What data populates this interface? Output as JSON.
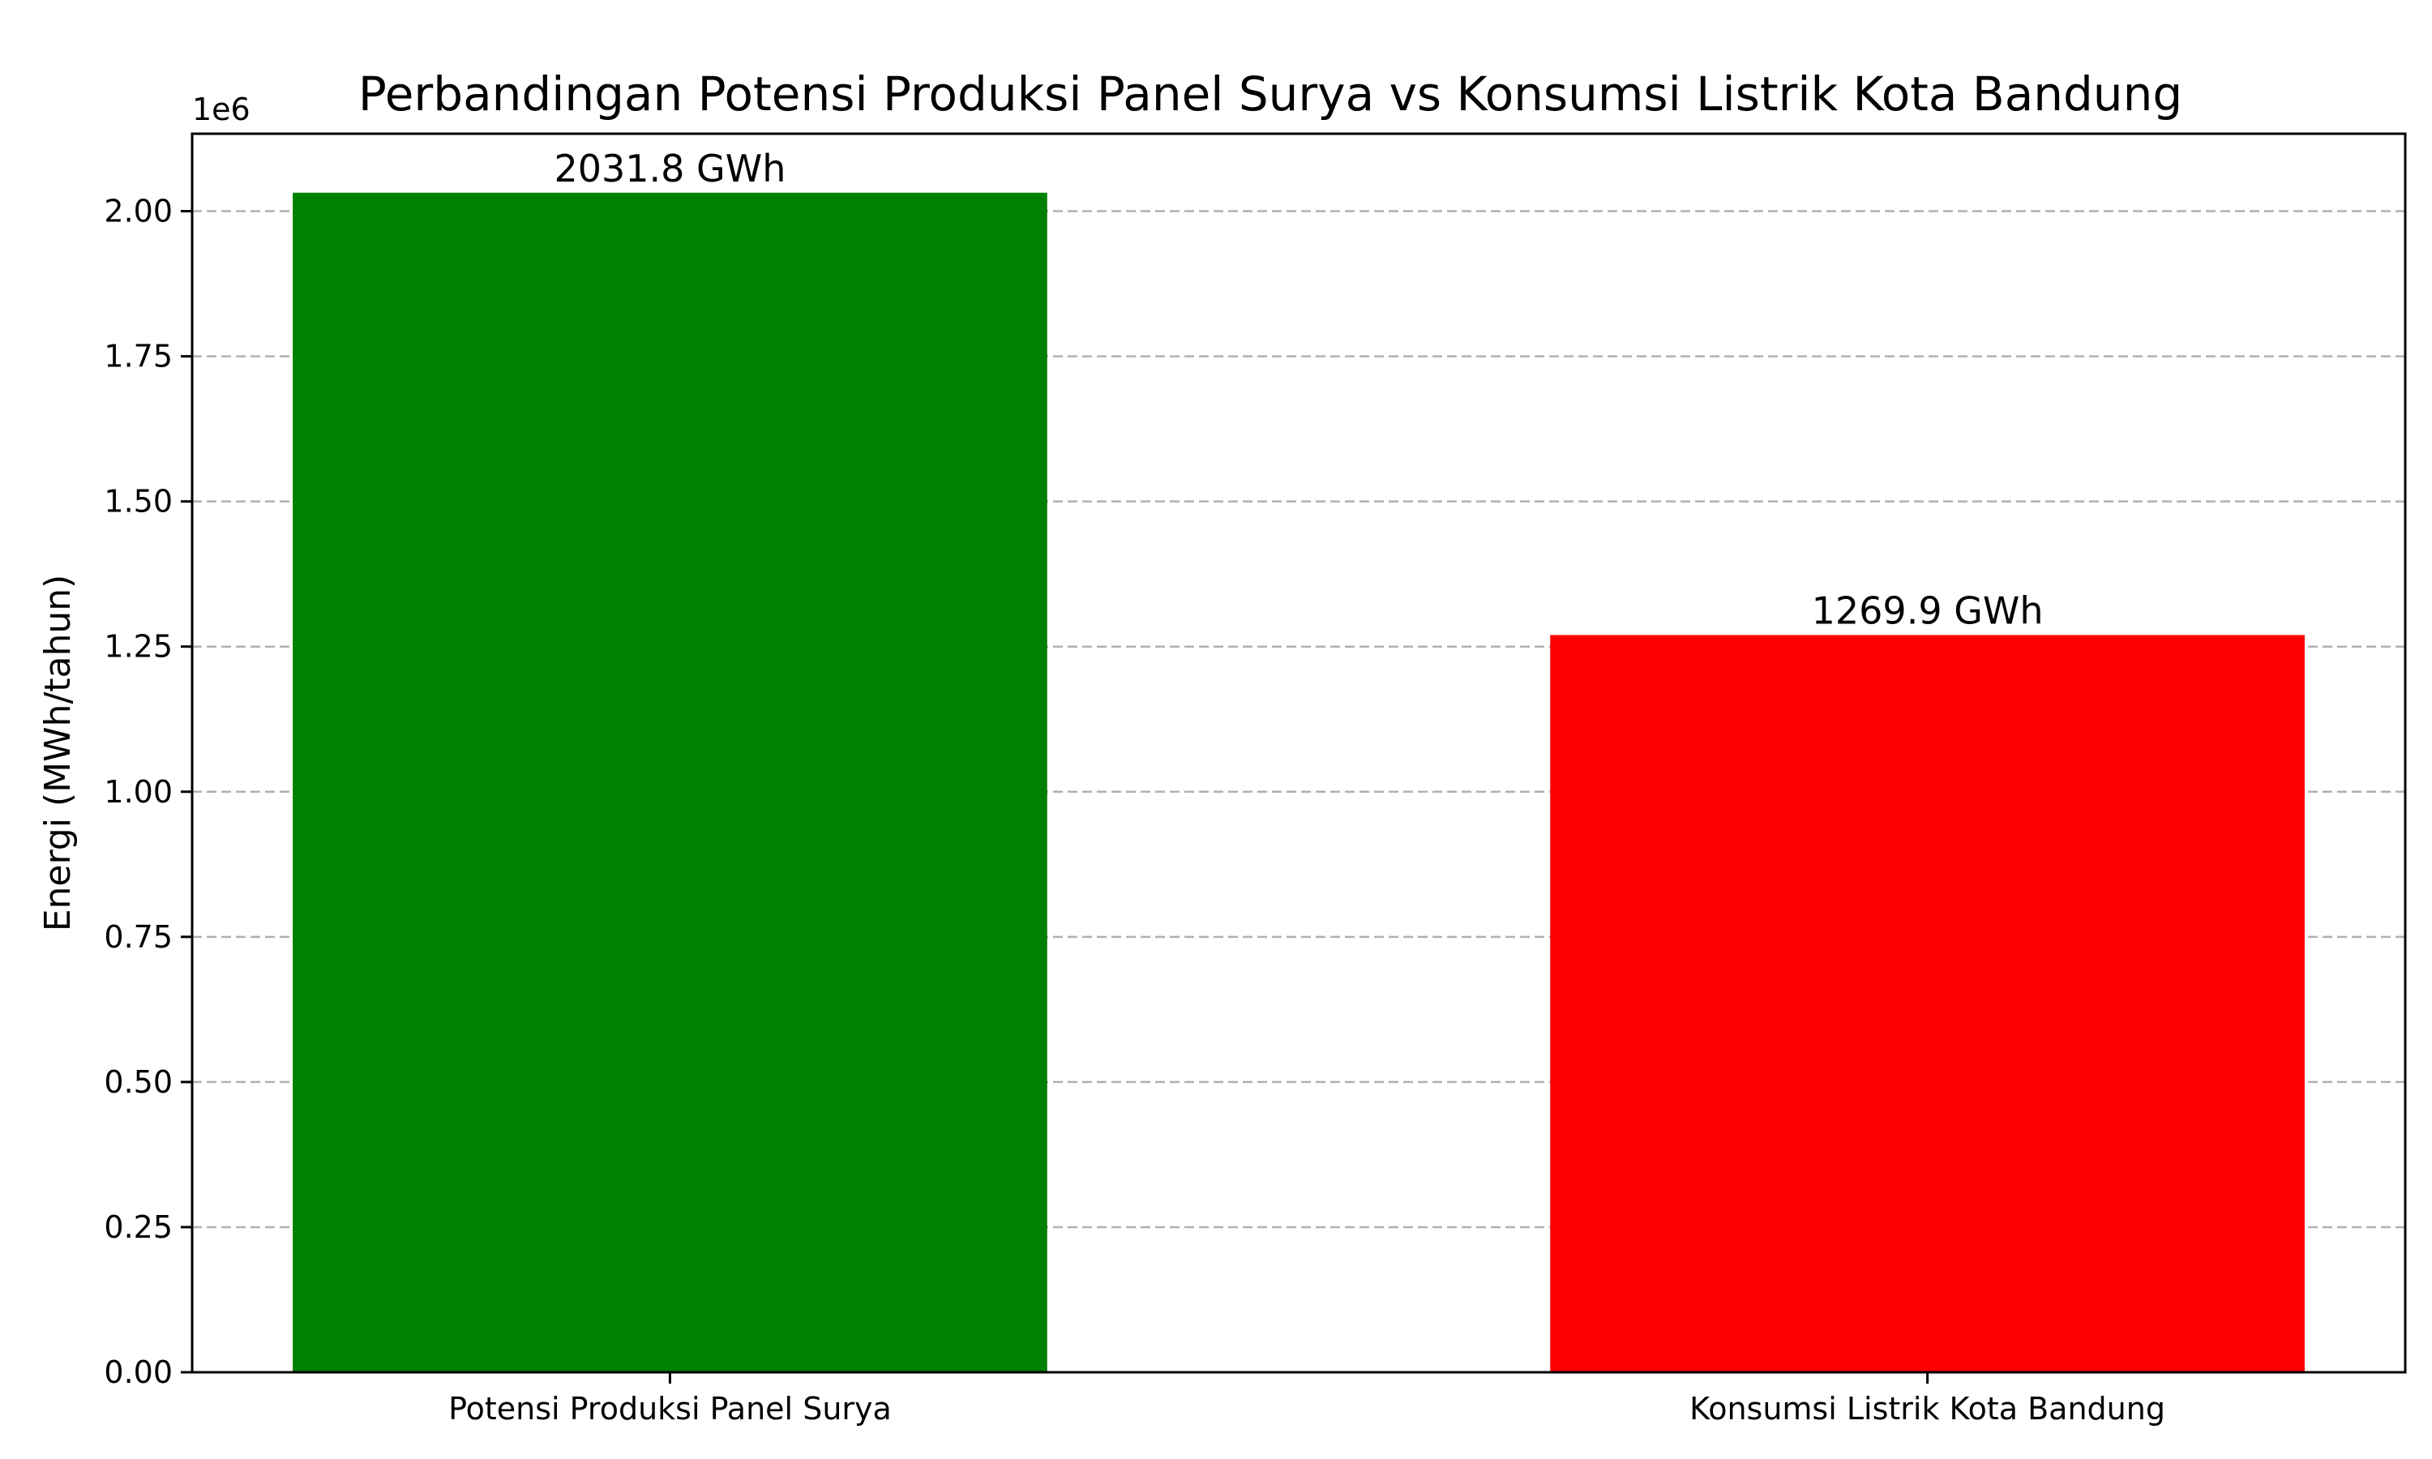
{
  "chart_data": {
    "type": "bar",
    "title": "Perbandingan Potensi Produksi Panel Surya vs Konsumsi Listrik Kota Bandung",
    "xlabel": "",
    "ylabel": "Energi (MWh/tahun)",
    "y_offset_label": "1e6",
    "categories": [
      "Potensi Produksi Panel Surya",
      "Konsumsi Listrik Kota Bandung"
    ],
    "values": [
      2031800,
      1269900
    ],
    "value_labels": [
      "2031.8 GWh",
      "1269.9 GWh"
    ],
    "colors": [
      "#008000",
      "#ff0000"
    ],
    "ylim": [
      0,
      2133390
    ],
    "yticks": [
      0,
      250000,
      500000,
      750000,
      1000000,
      1250000,
      1500000,
      1750000,
      2000000
    ],
    "ytick_labels": [
      "0.00",
      "0.25",
      "0.50",
      "0.75",
      "1.00",
      "1.25",
      "1.50",
      "1.75",
      "2.00"
    ],
    "grid": "y-dashed",
    "legend": "none"
  }
}
